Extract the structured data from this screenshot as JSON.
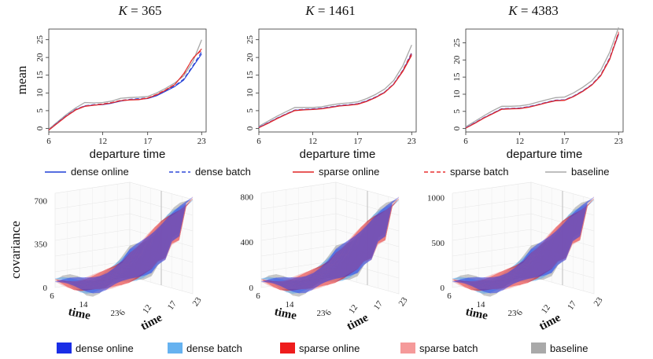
{
  "chart_data": [
    {
      "type": "line",
      "title": "K = 365",
      "xlabel": "departure time",
      "ylabel": "mean",
      "xlim": [
        6,
        23.5
      ],
      "ylim": [
        -1,
        28
      ],
      "xticks": [
        "6",
        "12",
        "17",
        "23"
      ],
      "yticks": [
        "0",
        "5",
        "10",
        "15",
        "20",
        "25"
      ],
      "x": [
        6,
        7,
        8,
        9,
        10,
        11,
        12,
        13,
        14,
        15,
        16,
        17,
        18,
        19,
        20,
        21,
        22,
        23
      ],
      "series": [
        {
          "name": "dense online",
          "values": [
            -0.5,
            1.6,
            3.6,
            5.3,
            6.3,
            6.6,
            6.7,
            7.1,
            7.7,
            8.1,
            8.2,
            8.4,
            9.2,
            10.5,
            11.8,
            13.6,
            17.3,
            21.0
          ]
        },
        {
          "name": "dense batch",
          "values": [
            -0.4,
            1.7,
            3.7,
            5.4,
            6.4,
            6.7,
            6.9,
            7.3,
            7.9,
            8.2,
            8.4,
            8.6,
            9.4,
            10.7,
            12.0,
            13.9,
            17.6,
            21.6
          ]
        },
        {
          "name": "sparse online",
          "values": [
            -0.5,
            1.5,
            3.5,
            5.2,
            6.2,
            6.5,
            6.8,
            7.2,
            7.8,
            8.0,
            8.1,
            8.5,
            9.5,
            10.8,
            12.3,
            15.4,
            19.6,
            22.4
          ]
        },
        {
          "name": "sparse batch",
          "values": [
            -0.4,
            1.6,
            3.6,
            5.3,
            6.3,
            6.6,
            6.9,
            7.3,
            7.9,
            8.1,
            8.2,
            8.6,
            9.6,
            10.9,
            12.4,
            15.2,
            19.8,
            22.0
          ]
        },
        {
          "name": "baseline",
          "values": [
            -0.2,
            1.9,
            4.0,
            5.8,
            7.3,
            7.2,
            7.3,
            7.7,
            8.5,
            8.7,
            8.8,
            9.0,
            10.0,
            11.3,
            12.8,
            14.8,
            18.7,
            25.0
          ]
        }
      ]
    },
    {
      "type": "line",
      "title": "K = 1461",
      "xlabel": "departure time",
      "ylabel": "",
      "xlim": [
        6,
        23.5
      ],
      "ylim": [
        -1,
        28
      ],
      "xticks": [
        "6",
        "12",
        "17",
        "23"
      ],
      "yticks": [
        "0",
        "5",
        "10",
        "15",
        "20",
        "25"
      ],
      "x": [
        6,
        7,
        8,
        9,
        10,
        11,
        12,
        13,
        14,
        15,
        16,
        17,
        18,
        19,
        20,
        21,
        22,
        23
      ],
      "series": [
        {
          "name": "dense online",
          "values": [
            0.3,
            1.5,
            2.8,
            4.0,
            5.1,
            5.3,
            5.4,
            5.6,
            6.0,
            6.4,
            6.6,
            6.9,
            7.7,
            8.8,
            10.2,
            12.5,
            16.2,
            21.0
          ]
        },
        {
          "name": "dense batch",
          "values": [
            0.3,
            1.6,
            2.9,
            4.1,
            5.2,
            5.4,
            5.5,
            5.7,
            6.1,
            6.5,
            6.7,
            7.0,
            7.8,
            8.9,
            10.3,
            12.6,
            16.4,
            21.4
          ]
        },
        {
          "name": "sparse online",
          "values": [
            0.2,
            1.4,
            2.7,
            3.9,
            5.0,
            5.2,
            5.3,
            5.5,
            5.9,
            6.3,
            6.5,
            6.8,
            7.6,
            8.7,
            10.1,
            12.4,
            16.0,
            20.6
          ]
        },
        {
          "name": "sparse batch",
          "values": [
            0.2,
            1.5,
            2.8,
            4.0,
            5.1,
            5.3,
            5.4,
            5.6,
            6.0,
            6.4,
            6.6,
            6.9,
            7.7,
            8.8,
            10.2,
            12.5,
            16.3,
            21.2
          ]
        },
        {
          "name": "baseline",
          "values": [
            0.6,
            2.0,
            3.4,
            4.7,
            5.9,
            5.9,
            5.9,
            6.1,
            6.6,
            7.0,
            7.2,
            7.5,
            8.4,
            9.6,
            11.1,
            13.5,
            17.6,
            23.5
          ]
        }
      ]
    },
    {
      "type": "line",
      "title": "K = 4383",
      "xlabel": "departure time",
      "ylabel": "",
      "xlim": [
        6,
        23.5
      ],
      "ylim": [
        -1,
        29
      ],
      "xticks": [
        "6",
        "12",
        "17",
        "23"
      ],
      "yticks": [
        "0",
        "5",
        "10",
        "15",
        "20",
        "25"
      ],
      "x": [
        6,
        7,
        8,
        9,
        10,
        11,
        12,
        13,
        14,
        15,
        16,
        17,
        18,
        19,
        20,
        21,
        22,
        23
      ],
      "series": [
        {
          "name": "dense online",
          "values": [
            0.2,
            1.6,
            3.1,
            4.4,
            5.7,
            5.8,
            5.9,
            6.3,
            6.9,
            7.6,
            8.2,
            8.3,
            9.4,
            10.9,
            12.7,
            15.4,
            20.3,
            27.5
          ]
        },
        {
          "name": "dense batch",
          "values": [
            0.2,
            1.7,
            3.2,
            4.5,
            5.8,
            5.9,
            6.0,
            6.4,
            7.0,
            7.7,
            8.3,
            8.4,
            9.5,
            11.0,
            12.8,
            15.6,
            20.6,
            28.0
          ]
        },
        {
          "name": "sparse online",
          "values": [
            0.1,
            1.5,
            3.0,
            4.3,
            5.6,
            5.7,
            5.8,
            6.2,
            6.8,
            7.5,
            8.1,
            8.2,
            9.3,
            10.8,
            12.6,
            15.3,
            20.1,
            27.8
          ]
        },
        {
          "name": "sparse batch",
          "values": [
            0.1,
            1.6,
            3.1,
            4.4,
            5.7,
            5.8,
            5.9,
            6.3,
            6.9,
            7.6,
            8.2,
            8.3,
            9.4,
            10.9,
            12.7,
            15.5,
            20.4,
            28.2
          ]
        },
        {
          "name": "baseline",
          "values": [
            0.5,
            2.1,
            3.7,
            5.2,
            6.5,
            6.5,
            6.6,
            7.0,
            7.7,
            8.4,
            9.0,
            9.2,
            10.4,
            12.0,
            13.9,
            16.9,
            22.2,
            29.5
          ]
        }
      ]
    },
    {
      "type": "surface",
      "title": "",
      "zlabel": "covariance",
      "xlabel": "time",
      "ylabel": "time",
      "zlim": [
        0,
        760
      ],
      "zticks": [
        "0",
        "350",
        "700"
      ],
      "xticks": [
        "6",
        "14",
        "23"
      ],
      "yticks": [
        "6",
        "12",
        "17",
        "23"
      ],
      "series": [
        "dense online",
        "dense batch",
        "sparse online",
        "sparse batch",
        "baseline"
      ]
    },
    {
      "type": "surface",
      "title": "",
      "zlabel": "",
      "xlabel": "time",
      "ylabel": "time",
      "zlim": [
        0,
        830
      ],
      "zticks": [
        "0",
        "400",
        "800"
      ],
      "xticks": [
        "6",
        "14",
        "23"
      ],
      "yticks": [
        "6",
        "12",
        "17",
        "23"
      ],
      "series": [
        "dense online",
        "dense batch",
        "sparse online",
        "sparse batch",
        "baseline"
      ]
    },
    {
      "type": "surface",
      "title": "",
      "zlabel": "",
      "xlabel": "time",
      "ylabel": "time",
      "zlim": [
        0,
        1050
      ],
      "zticks": [
        "0",
        "500",
        "1000"
      ],
      "xticks": [
        "6",
        "14",
        "23"
      ],
      "yticks": [
        "6",
        "12",
        "17",
        "23"
      ],
      "series": [
        "dense online",
        "dense batch",
        "sparse online",
        "sparse batch",
        "baseline"
      ]
    }
  ],
  "line_legend": [
    {
      "label": "dense  online",
      "color": "#1f3fd6",
      "dash": false
    },
    {
      "label": "dense  batch",
      "color": "#2f48d8",
      "dash": true
    },
    {
      "label": "sparse  online",
      "color": "#e02424",
      "dash": false
    },
    {
      "label": "sparse  batch",
      "color": "#e83030",
      "dash": true
    },
    {
      "label": "baseline",
      "color": "#a8a8a8",
      "dash": false
    }
  ],
  "surface_legend": [
    {
      "label": "dense  online",
      "color": "#1a2ee6"
    },
    {
      "label": "dense  batch",
      "color": "#66b2f0"
    },
    {
      "label": "sparse  online",
      "color": "#ee1c1c"
    },
    {
      "label": "sparse  batch",
      "color": "#f59a9a"
    },
    {
      "label": "baseline",
      "color": "#a9a9a9"
    }
  ],
  "colors": {
    "dense_online": "#1f3fd6",
    "dense_batch": "#2f48d8",
    "sparse_online": "#e02424",
    "sparse_batch": "#e83030",
    "baseline": "#a8a8a8"
  }
}
